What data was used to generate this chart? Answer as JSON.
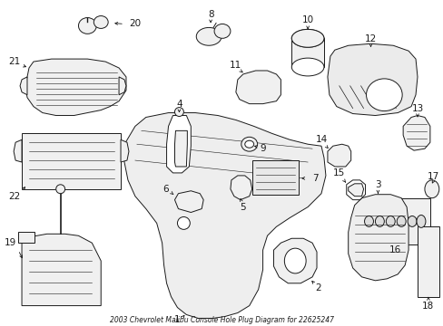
{
  "title": "2003 Chevrolet Malibu Console Hole Plug Diagram for 22625247",
  "bg": "#ffffff",
  "lc": "#1a1a1a",
  "fc": "#f0f0f0",
  "fig_w": 4.89,
  "fig_h": 3.6,
  "dpi": 100,
  "label_fs": 7.5,
  "title_fs": 5.5
}
